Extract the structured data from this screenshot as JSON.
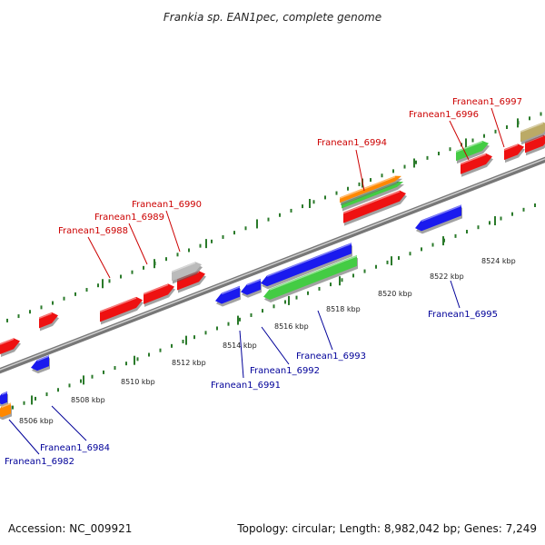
{
  "title": "Frankia sp. EAN1pec, complete genome",
  "footer": {
    "accession": "Accession: NC_009921",
    "topology": "Topology: circular; Length: 8,982,042 bp; Genes: 7,249"
  },
  "colors": {
    "forward_label": "#cc0000",
    "reverse_label": "#000099",
    "backbone": "#888888",
    "tick": "#2a7a2a",
    "gene_red": "#ee1111",
    "gene_blue": "#1a1aee",
    "gene_green": "#44cc44",
    "gene_orange": "#ff8800",
    "gene_grey": "#bbbbbb",
    "gene_khaki": "#bbaa66"
  },
  "scale_labels": [
    "8506 kbp",
    "8508 kbp",
    "8510 kbp",
    "8512 kbp",
    "8514 kbp",
    "8516 kbp",
    "8518 kbp",
    "8520 kbp",
    "8522 kbp",
    "8524 kbp"
  ],
  "forward_gene_labels": [
    "Franean1_6988",
    "Franean1_6989",
    "Franean1_6990",
    "Franean1_6994",
    "Franean1_6996",
    "Franean1_6997"
  ],
  "reverse_gene_labels": [
    "Franean1_6982",
    "Franean1_6984",
    "Franean1_6991",
    "Franean1_6992",
    "Franean1_6993",
    "Franean1_6995"
  ]
}
